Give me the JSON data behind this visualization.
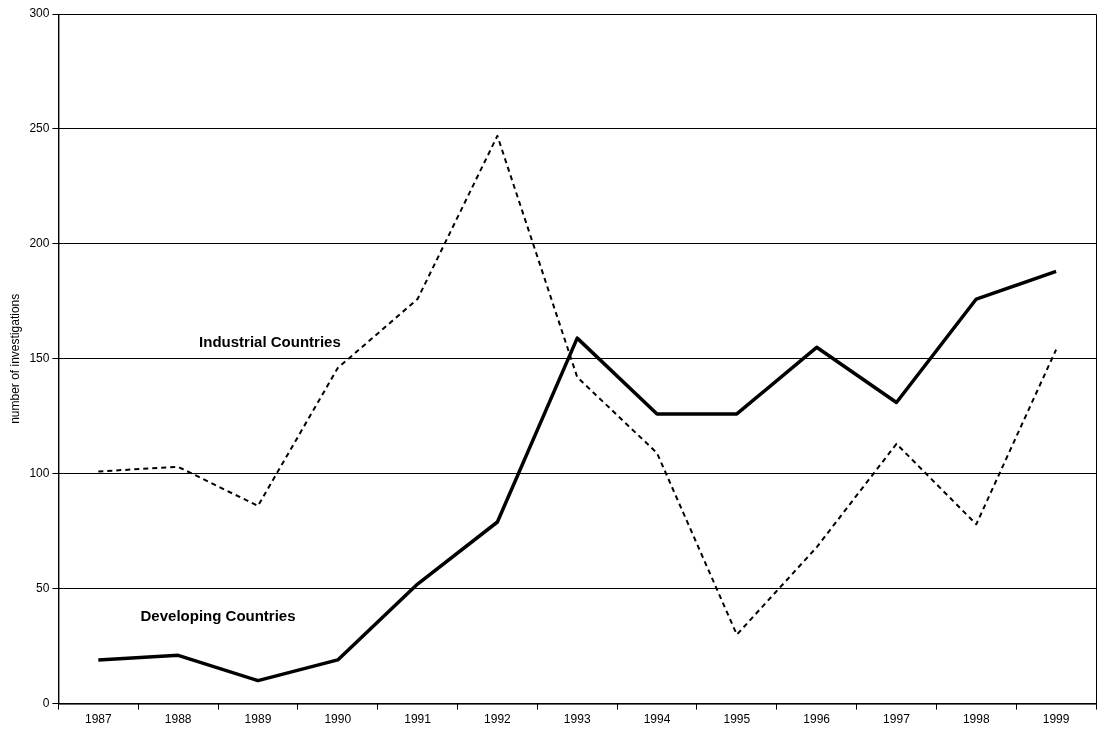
{
  "chart_data": {
    "type": "line",
    "ylabel": "number of investigations",
    "categories": [
      "1987",
      "1988",
      "1989",
      "1990",
      "1991",
      "1992",
      "1993",
      "1994",
      "1995",
      "1996",
      "1997",
      "1998",
      "1999"
    ],
    "series": [
      {
        "name": "Developing Countries",
        "color": "#000000",
        "line_style": "solid",
        "values": [
          19,
          21,
          10,
          19,
          52,
          79,
          159,
          126,
          126,
          155,
          131,
          176,
          188
        ]
      },
      {
        "name": "Industrial Countries",
        "color": "#000000",
        "line_style": "dashed",
        "values": [
          101,
          103,
          86,
          146,
          176,
          247,
          142,
          109,
          30,
          68,
          113,
          78,
          154
        ]
      }
    ],
    "ylim": [
      0,
      300
    ],
    "yticks": [
      0,
      50,
      100,
      150,
      200,
      250,
      300
    ],
    "grid": "y",
    "legend": false,
    "marker": "none"
  }
}
